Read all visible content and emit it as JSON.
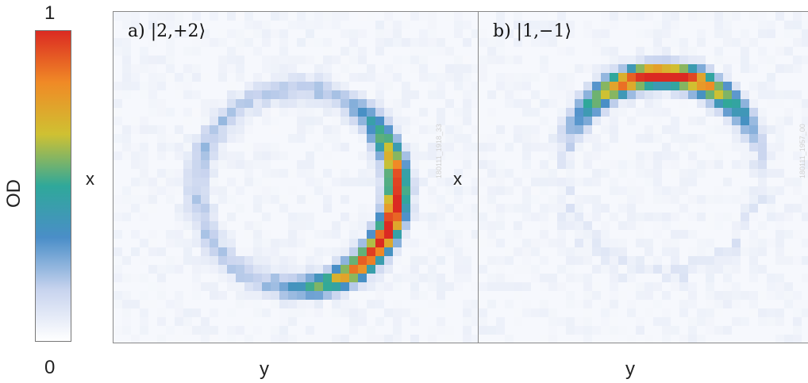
{
  "chart_data": [
    {
      "type": "heatmap",
      "panel_label": "a) |2,+2⟩",
      "xlabel": "y",
      "ylabel": "x",
      "grid": false,
      "stamp": "180111_1918_33",
      "pattern": {
        "shape": "ring",
        "center": [
          0.5,
          0.53
        ],
        "radius": 0.3,
        "peak_side": "lower-right",
        "peak_od": 1.0,
        "background_od": 0.03
      }
    },
    {
      "type": "heatmap",
      "panel_label": "b) |1,−1⟩",
      "xlabel": "y",
      "ylabel": "x",
      "grid": false,
      "stamp": "180111_1957_00",
      "pattern": {
        "shape": "arc",
        "center": [
          0.5,
          0.49
        ],
        "radius": 0.3,
        "peak_side": "top",
        "peak_od": 1.0,
        "background_od": 0.03
      }
    }
  ],
  "colorbar": {
    "label": "OD",
    "min_label": "0",
    "max_label": "1",
    "colors": [
      "#ffffff",
      "#c7d3ee",
      "#4a8ec8",
      "#2fa89a",
      "#cfc132",
      "#f08a26",
      "#db2a22"
    ]
  }
}
